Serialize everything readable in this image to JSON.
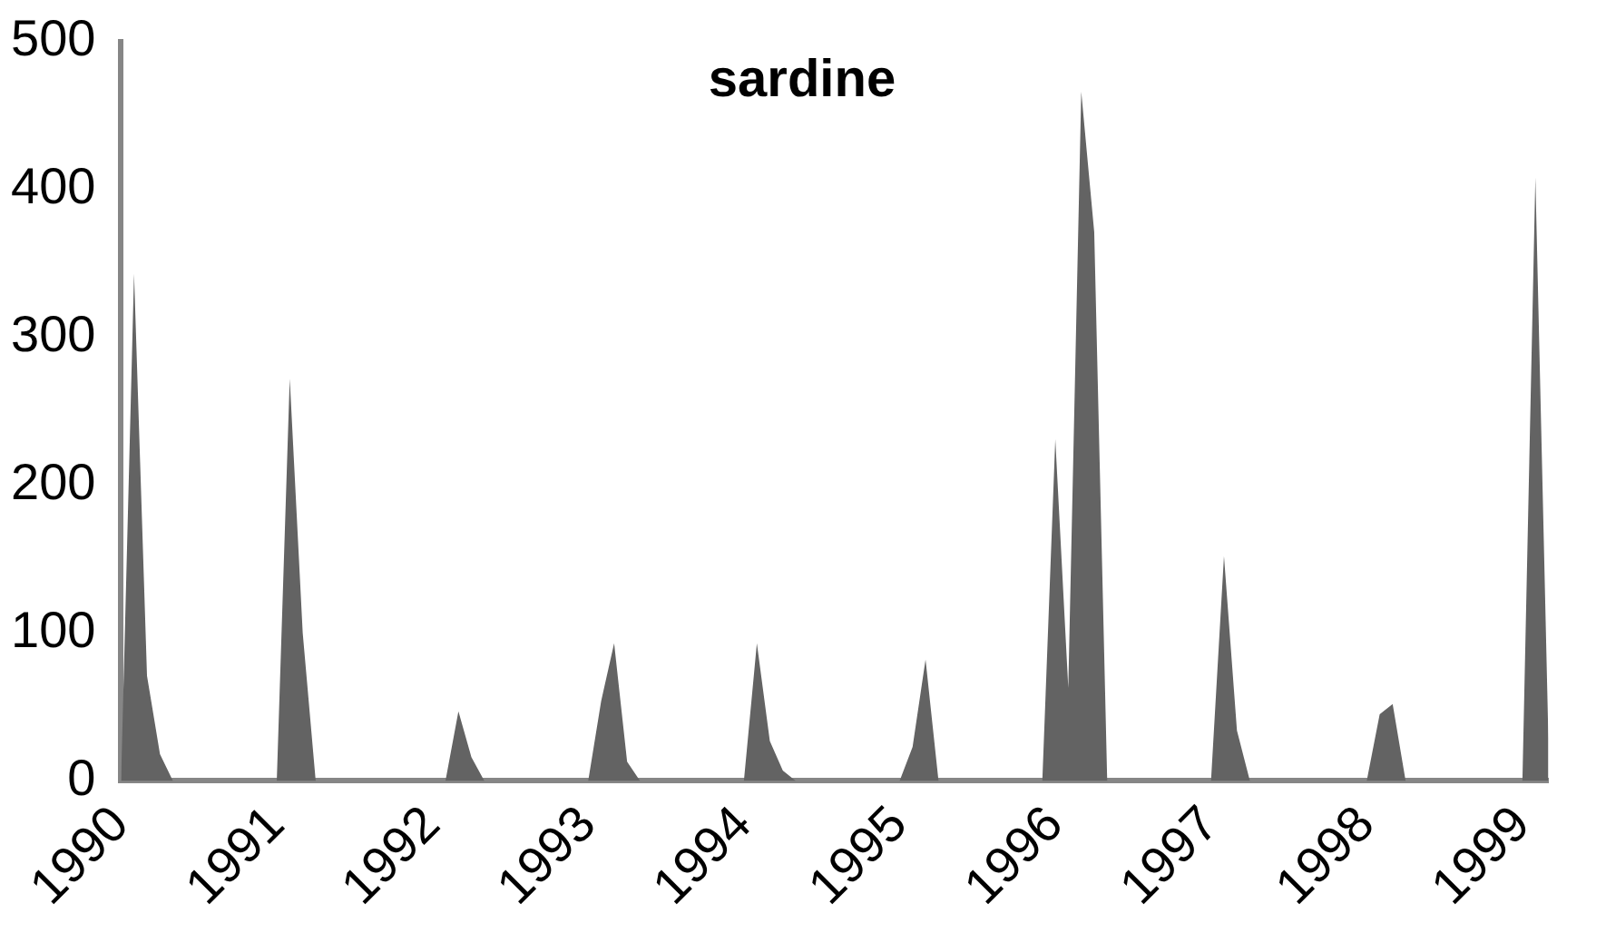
{
  "chart_data": {
    "type": "area",
    "title": "sardine",
    "categories": [
      "1990",
      null,
      null,
      null,
      null,
      null,
      null,
      null,
      null,
      null,
      null,
      null,
      "1991",
      null,
      null,
      null,
      null,
      null,
      null,
      null,
      null,
      null,
      null,
      null,
      "1992",
      null,
      null,
      null,
      null,
      null,
      null,
      null,
      null,
      null,
      null,
      null,
      "1993",
      null,
      null,
      null,
      null,
      null,
      null,
      null,
      null,
      null,
      null,
      null,
      "1994",
      null,
      null,
      null,
      null,
      null,
      null,
      null,
      null,
      null,
      null,
      null,
      "1995",
      null,
      null,
      null,
      null,
      null,
      null,
      null,
      null,
      null,
      null,
      null,
      "1996",
      null,
      null,
      null,
      null,
      null,
      null,
      null,
      null,
      null,
      null,
      null,
      "1997",
      null,
      null,
      null,
      null,
      null,
      null,
      null,
      null,
      null,
      null,
      null,
      "1998",
      null,
      null,
      null,
      null,
      null,
      null,
      null,
      null,
      null,
      null,
      null,
      "1999",
      null,
      null
    ],
    "values": [
      0,
      343,
      71,
      18,
      0,
      0,
      0,
      0,
      0,
      0,
      0,
      0,
      0,
      272,
      100,
      0,
      0,
      0,
      0,
      0,
      0,
      0,
      0,
      0,
      0,
      0,
      47,
      16,
      0,
      0,
      0,
      0,
      0,
      0,
      0,
      0,
      0,
      54,
      93,
      13,
      0,
      0,
      0,
      0,
      0,
      0,
      0,
      0,
      0,
      93,
      27,
      7,
      0,
      0,
      0,
      0,
      0,
      0,
      0,
      0,
      0,
      23,
      82,
      0,
      0,
      0,
      0,
      0,
      0,
      0,
      0,
      0,
      231,
      63,
      466,
      371,
      0,
      0,
      0,
      0,
      0,
      0,
      0,
      0,
      0,
      152,
      34,
      0,
      0,
      0,
      0,
      0,
      0,
      0,
      0,
      0,
      0,
      45,
      52,
      0,
      0,
      0,
      0,
      0,
      0,
      0,
      0,
      0,
      0,
      408,
      29
    ],
    "color": "#636363",
    "ylim": [
      0,
      500
    ],
    "yticks": [
      0,
      100,
      200,
      300,
      400,
      500
    ]
  }
}
